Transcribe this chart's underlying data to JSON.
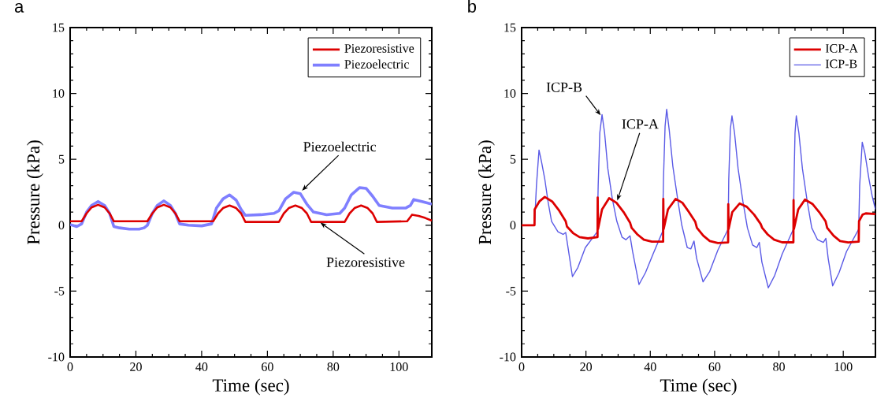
{
  "chart_data": [
    {
      "type": "line",
      "title": "a",
      "xlabel": "Time (sec)",
      "ylabel": "Pressure (kPa)",
      "xlim": [
        0,
        110
      ],
      "ylim": [
        -10,
        15
      ],
      "xticks": [
        0,
        20,
        40,
        60,
        80,
        100
      ],
      "yticks": [
        -10,
        -5,
        0,
        5,
        10,
        15
      ],
      "legend": "top right",
      "marker": "none",
      "annotations": [
        {
          "text": "Piezoelectric",
          "x": 70,
          "y": 2.5
        },
        {
          "text": "Piezoresistive",
          "x": 75.5,
          "y": 0.3
        }
      ],
      "series": [
        {
          "name": "Piezoresistive",
          "color": "#dd0000",
          "x": [
            0,
            3.5,
            5,
            6.5,
            8.5,
            10.5,
            12,
            13.3,
            23.5,
            25,
            26.5,
            28.5,
            30.5,
            32,
            33.3,
            43.5,
            45,
            46.5,
            48.5,
            50.5,
            52,
            53.3,
            63.5,
            65,
            66.5,
            68.5,
            70.5,
            72,
            73.3,
            83.5,
            85,
            86.5,
            88.5,
            90.5,
            92,
            93.3,
            102.5,
            104,
            106,
            108,
            110
          ],
          "values": [
            0.3,
            0.3,
            0.9,
            1.35,
            1.55,
            1.35,
            0.9,
            0.3,
            0.3,
            0.9,
            1.35,
            1.55,
            1.35,
            0.9,
            0.3,
            0.3,
            0.9,
            1.3,
            1.5,
            1.3,
            0.9,
            0.25,
            0.25,
            0.9,
            1.3,
            1.5,
            1.3,
            0.9,
            0.25,
            0.25,
            0.9,
            1.3,
            1.5,
            1.3,
            0.9,
            0.25,
            0.3,
            0.8,
            0.7,
            0.55,
            0.35
          ]
        },
        {
          "name": "Piezoelectric",
          "color": "#7f7fff",
          "x": [
            0,
            2,
            3.5,
            5,
            6.5,
            8.5,
            10.5,
            12,
            13.3,
            15,
            18,
            21,
            22.5,
            23.5,
            25,
            26.5,
            28.5,
            30.5,
            32,
            33.3,
            36,
            40,
            43,
            44.5,
            46.5,
            48.5,
            50.5,
            52,
            53.3,
            58,
            62,
            63.5,
            65.5,
            68,
            70,
            72,
            74,
            78,
            82,
            83.5,
            85.5,
            88,
            90,
            92,
            94,
            98,
            102,
            103.5,
            104.5,
            107,
            110
          ],
          "values": [
            0.05,
            -0.1,
            0.1,
            1.0,
            1.5,
            1.8,
            1.5,
            0.9,
            -0.1,
            -0.2,
            -0.3,
            -0.3,
            -0.2,
            0.0,
            0.9,
            1.5,
            1.85,
            1.5,
            0.9,
            0.1,
            0.0,
            -0.05,
            0.1,
            1.3,
            2.0,
            2.3,
            1.9,
            1.2,
            0.75,
            0.8,
            0.9,
            1.1,
            2.0,
            2.5,
            2.4,
            1.6,
            1.0,
            0.8,
            0.9,
            1.3,
            2.3,
            2.85,
            2.8,
            2.2,
            1.5,
            1.3,
            1.3,
            1.5,
            1.95,
            1.8,
            1.6
          ]
        }
      ]
    },
    {
      "type": "line",
      "title": "b",
      "xlabel": "Time (sec)",
      "ylabel": "Pressure (kPa)",
      "xlim": [
        0,
        110
      ],
      "ylim": [
        -10,
        15
      ],
      "xticks": [
        0,
        20,
        40,
        60,
        80,
        100
      ],
      "yticks": [
        -10,
        -5,
        0,
        5,
        10,
        15
      ],
      "legend": "top right",
      "marker": "none",
      "annotations": [
        {
          "text": "ICP-B",
          "x": 25,
          "y": 8.2
        },
        {
          "text": "ICP-A",
          "x": 29.5,
          "y": 1.7
        }
      ],
      "series": [
        {
          "name": "ICP-A",
          "color": "#dd0000",
          "x": [
            0,
            4,
            4.05,
            5.5,
            7.2,
            9.5,
            11.7,
            13.7,
            14.1,
            16,
            18,
            20.6,
            23.6,
            23.65,
            23.75,
            25,
            27.2,
            29.5,
            31.7,
            33.7,
            34.2,
            36,
            38,
            40.5,
            44.0,
            44.05,
            44.15,
            45.5,
            47.9,
            50,
            52,
            54,
            54.5,
            56.5,
            58.5,
            61,
            64.2,
            64.25,
            64.35,
            65.5,
            67.8,
            70,
            72.3,
            74.3,
            74.8,
            76.5,
            78.5,
            81,
            84.5,
            84.55,
            84.65,
            86,
            88.1,
            90.5,
            92.5,
            94.5,
            95,
            97,
            99,
            101.5,
            104.8,
            104.9,
            106,
            107,
            110
          ],
          "values": [
            0,
            0,
            1.2,
            1.8,
            2.15,
            1.8,
            1.1,
            0.3,
            -0.1,
            -0.6,
            -0.9,
            -1.0,
            -0.9,
            2.1,
            -0.3,
            1.2,
            2.05,
            1.7,
            1.0,
            0.2,
            -0.2,
            -0.7,
            -1.1,
            -1.25,
            -1.25,
            2.0,
            -0.3,
            1.2,
            2.0,
            1.7,
            1.0,
            0.25,
            -0.2,
            -0.8,
            -1.2,
            -1.35,
            -1.3,
            1.6,
            -0.3,
            1.0,
            1.65,
            1.4,
            0.8,
            0.1,
            -0.2,
            -0.7,
            -1.1,
            -1.3,
            -1.3,
            1.9,
            -0.3,
            1.2,
            1.95,
            1.6,
            1.0,
            0.3,
            -0.2,
            -0.8,
            -1.2,
            -1.3,
            -1.25,
            0.3,
            0.8,
            0.9,
            0.85
          ]
        },
        {
          "name": "ICP-B",
          "color": "#5a5ae6",
          "x": [
            0,
            4,
            4.6,
            5.4,
            6.2,
            7.2,
            8.2,
            9.3,
            11.3,
            12.9,
            13.7,
            14.3,
            15.8,
            17.5,
            19.8,
            23.5,
            23.8,
            24.3,
            25,
            25.8,
            26.8,
            28.2,
            29.6,
            31.2,
            32.4,
            33.7,
            34.5,
            36.5,
            38.5,
            41,
            43.8,
            44.1,
            44.6,
            45.1,
            45.9,
            47,
            48.5,
            49.8,
            51.5,
            52.6,
            53.6,
            54.4,
            56.4,
            58.5,
            61,
            64.2,
            64.4,
            64.9,
            65.4,
            66.2,
            67.3,
            68.8,
            70.2,
            71.8,
            73.1,
            73.9,
            74.7,
            76.7,
            78.7,
            81,
            84.5,
            84.7,
            85.0,
            85.4,
            86.2,
            87.3,
            88.8,
            90.2,
            92,
            93.8,
            94.6,
            95.3,
            96.7,
            98.7,
            101,
            104.8,
            105.1,
            105.9,
            106.7,
            108,
            109,
            110
          ],
          "values": [
            0,
            0,
            3.0,
            5.7,
            4.8,
            3.5,
            1.8,
            0.3,
            -0.5,
            -0.7,
            -0.55,
            -1.5,
            -3.9,
            -3.2,
            -1.7,
            -0.5,
            3.0,
            7.0,
            8.4,
            7.0,
            4.3,
            2.0,
            0.3,
            -0.9,
            -1.1,
            -0.8,
            -2.0,
            -4.5,
            -3.6,
            -2.1,
            -0.5,
            3.5,
            7.5,
            8.8,
            7.2,
            4.5,
            2.0,
            0.0,
            -1.7,
            -1.8,
            -1.2,
            -2.5,
            -4.3,
            -3.5,
            -1.9,
            -0.3,
            3.5,
            7.3,
            8.3,
            7.0,
            4.3,
            1.8,
            -0.2,
            -1.5,
            -1.7,
            -1.3,
            -2.8,
            -4.75,
            -3.8,
            -2.2,
            -0.3,
            3.5,
            7.0,
            8.3,
            7.0,
            4.3,
            1.8,
            -0.2,
            -1.1,
            -1.3,
            -1.0,
            -2.5,
            -4.6,
            -3.6,
            -2.0,
            -0.3,
            3.0,
            6.3,
            5.5,
            3.5,
            2.2,
            1.2
          ]
        }
      ]
    }
  ]
}
